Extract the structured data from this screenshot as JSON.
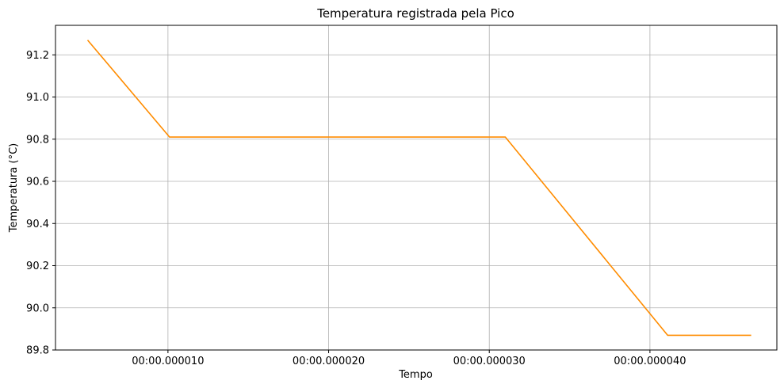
{
  "chart_data": {
    "type": "line",
    "title": "Temperatura registrada pela Pico",
    "xlabel": "Tempo",
    "ylabel": "Temperatura (°C)",
    "grid": true,
    "x_unit": "microseconds",
    "xlim": [
      3.0,
      47.9
    ],
    "ylim": [
      89.8,
      91.34
    ],
    "x_ticks": [
      10,
      20,
      30,
      40
    ],
    "x_tick_labels": [
      "00:00.000010",
      "00:00.000020",
      "00:00.000030",
      "00:00.000040"
    ],
    "y_ticks": [
      89.8,
      90.0,
      90.2,
      90.4,
      90.6,
      90.8,
      91.0,
      91.2
    ],
    "y_tick_labels": [
      "89.8",
      "90.0",
      "90.2",
      "90.4",
      "90.6",
      "90.8",
      "91.0",
      "91.2"
    ],
    "series": [
      {
        "color": "#ff8c00",
        "x": [
          5.0,
          10.1,
          31.0,
          41.1,
          46.3
        ],
        "y": [
          91.27,
          90.81,
          90.81,
          89.87,
          89.87
        ]
      }
    ]
  }
}
